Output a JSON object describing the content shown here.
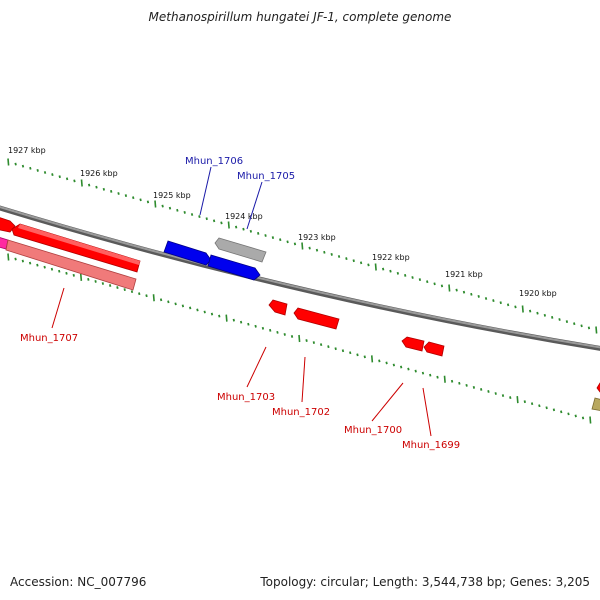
{
  "title": "Methanospirillum hungatei JF-1, complete genome",
  "footer": {
    "accession": "Accession: NC_007796",
    "stats": "Topology: circular; Length: 3,544,738 bp; Genes: 3,205"
  },
  "colors": {
    "backbone": "#7a7a7a",
    "tick": "#2e8b2e",
    "forward_red": "#ff0000",
    "blue": "#0000ee",
    "gray": "#aaaaaa",
    "pink": "#f07a7a",
    "magenta": "#ff2aa0",
    "olive": "#b8a860",
    "label_blue": "#1a1aa8",
    "label_red": "#cc0000"
  },
  "scale_labels": [
    "1927 kbp",
    "1926 kbp",
    "1925 kbp",
    "1924 kbp",
    "1923 kbp",
    "1922 kbp",
    "1921 kbp",
    "1920 kbp"
  ],
  "gene_labels": [
    "Mhun_1706",
    "Mhun_1705",
    "Mhun_1707",
    "Mhun_1703",
    "Mhun_1702",
    "Mhun_1700",
    "Mhun_1699"
  ]
}
